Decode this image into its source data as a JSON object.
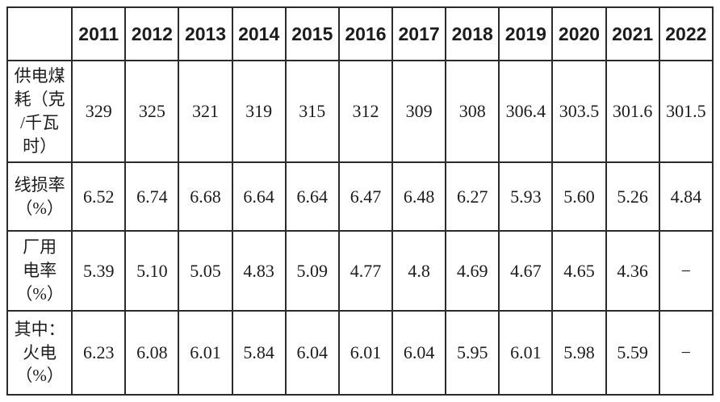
{
  "chart_data": {
    "type": "table",
    "header_row": [
      "",
      "2011",
      "2012",
      "2013",
      "2014",
      "2015",
      "2016",
      "2017",
      "2018",
      "2019",
      "2020",
      "2021",
      "2022"
    ],
    "rows": [
      {
        "label": "供电煤耗（克/千瓦时）",
        "label_wrapped": "供电煤\n耗（克\n/千瓦\n时）",
        "values": [
          "329",
          "325",
          "321",
          "319",
          "315",
          "312",
          "309",
          "308",
          "306.4",
          "303.5",
          "301.6",
          "301.5"
        ]
      },
      {
        "label": "线损率（%）",
        "label_wrapped": "线损率\n（%）",
        "values": [
          "6.52",
          "6.74",
          "6.68",
          "6.64",
          "6.64",
          "6.47",
          "6.48",
          "6.27",
          "5.93",
          "5.60",
          "5.26",
          "4.84"
        ]
      },
      {
        "label": "厂用电率（%）",
        "label_wrapped": "厂用\n电率\n（%）",
        "values": [
          "5.39",
          "5.10",
          "5.05",
          "4.83",
          "5.09",
          "4.77",
          "4.8",
          "4.69",
          "4.67",
          "4.65",
          "4.36",
          "−"
        ]
      },
      {
        "label": "其中：火电（%）",
        "label_wrapped": "其中：\n火电\n（%）",
        "values": [
          "6.23",
          "6.08",
          "6.01",
          "5.84",
          "6.04",
          "6.01",
          "6.04",
          "5.95",
          "6.01",
          "5.98",
          "5.59",
          "−"
        ]
      }
    ],
    "missing_value_symbol": "−"
  },
  "style": {
    "border_color": "#2b2b2b",
    "text_color": "#1c1c1c",
    "background": "#ffffff"
  }
}
